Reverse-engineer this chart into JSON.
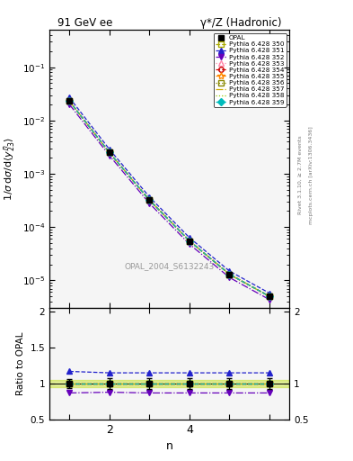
{
  "title_left": "91 GeV ee",
  "title_right": "γ*/Z (Hadronic)",
  "ylabel_main": "1/σ dσ/d⟨y^n_{23}⟩",
  "ylabel_ratio": "Ratio to OPAL",
  "xlabel": "n",
  "watermark": "OPAL_2004_S6132243",
  "right_label1": "Rivet 3.1.10, ≥ 2.7M events",
  "right_label2": "mcplots.cern.ch [arXiv:1306.3436]",
  "x_data": [
    1,
    2,
    3,
    4,
    5,
    6
  ],
  "opal_y": [
    0.023,
    0.0025,
    0.00032,
    5.5e-05,
    1.3e-05,
    5e-06
  ],
  "opal_yerr": [
    0.0015,
    0.00018,
    2.5e-05,
    4e-06,
    1e-06,
    4e-07
  ],
  "series": [
    {
      "label": "Pythia 6.428 350",
      "color": "#aaaa00",
      "linestyle": "--",
      "marker": "s",
      "filled": false,
      "ratio": [
        1.0,
        1.0,
        1.0,
        1.0,
        1.0,
        1.0
      ]
    },
    {
      "label": "Pythia 6.428 351",
      "color": "#2222cc",
      "linestyle": "--",
      "marker": "^",
      "filled": true,
      "ratio": [
        1.17,
        1.15,
        1.15,
        1.15,
        1.15,
        1.15
      ]
    },
    {
      "label": "Pythia 6.428 352",
      "color": "#6600bb",
      "linestyle": "-.",
      "marker": "v",
      "filled": true,
      "ratio": [
        0.87,
        0.88,
        0.87,
        0.87,
        0.87,
        0.87
      ]
    },
    {
      "label": "Pythia 6.428 353",
      "color": "#ff88aa",
      "linestyle": ":",
      "marker": "^",
      "filled": false,
      "ratio": [
        1.0,
        1.0,
        1.0,
        1.0,
        1.0,
        1.0
      ]
    },
    {
      "label": "Pythia 6.428 354",
      "color": "#cc0000",
      "linestyle": "--",
      "marker": "o",
      "filled": false,
      "ratio": [
        1.0,
        1.0,
        1.0,
        1.0,
        1.0,
        1.0
      ]
    },
    {
      "label": "Pythia 6.428 355",
      "color": "#ff8800",
      "linestyle": "--",
      "marker": "*",
      "filled": false,
      "ratio": [
        1.0,
        1.0,
        1.0,
        1.0,
        1.0,
        1.0
      ]
    },
    {
      "label": "Pythia 6.428 356",
      "color": "#888800",
      "linestyle": ":",
      "marker": "s",
      "filled": false,
      "ratio": [
        1.0,
        1.0,
        1.0,
        1.0,
        1.0,
        1.0
      ]
    },
    {
      "label": "Pythia 6.428 357",
      "color": "#ccaa00",
      "linestyle": "-.",
      "marker": "None",
      "filled": false,
      "ratio": [
        1.0,
        1.0,
        1.0,
        1.0,
        1.0,
        1.0
      ]
    },
    {
      "label": "Pythia 6.428 358",
      "color": "#99cc00",
      "linestyle": ":",
      "marker": "None",
      "filled": false,
      "ratio": [
        1.0,
        1.0,
        1.0,
        1.0,
        1.0,
        1.0
      ]
    },
    {
      "label": "Pythia 6.428 359",
      "color": "#00bbbb",
      "linestyle": "--",
      "marker": "D",
      "filled": true,
      "ratio": [
        1.0,
        1.0,
        1.0,
        1.0,
        1.0,
        1.0
      ]
    }
  ],
  "ylim_main": [
    3e-06,
    0.5
  ],
  "ylim_ratio": [
    0.5,
    2.05
  ],
  "xlim": [
    0.5,
    6.5
  ],
  "xticks": [
    1,
    2,
    3,
    4,
    5,
    6
  ],
  "xtick_labels": [
    "",
    "2",
    "",
    "4",
    "",
    ""
  ],
  "band_color": "#bbdd00",
  "band_alpha": 0.4,
  "band_ratio_low": 0.95,
  "band_ratio_high": 1.05,
  "bg_color": "#f5f5f5"
}
